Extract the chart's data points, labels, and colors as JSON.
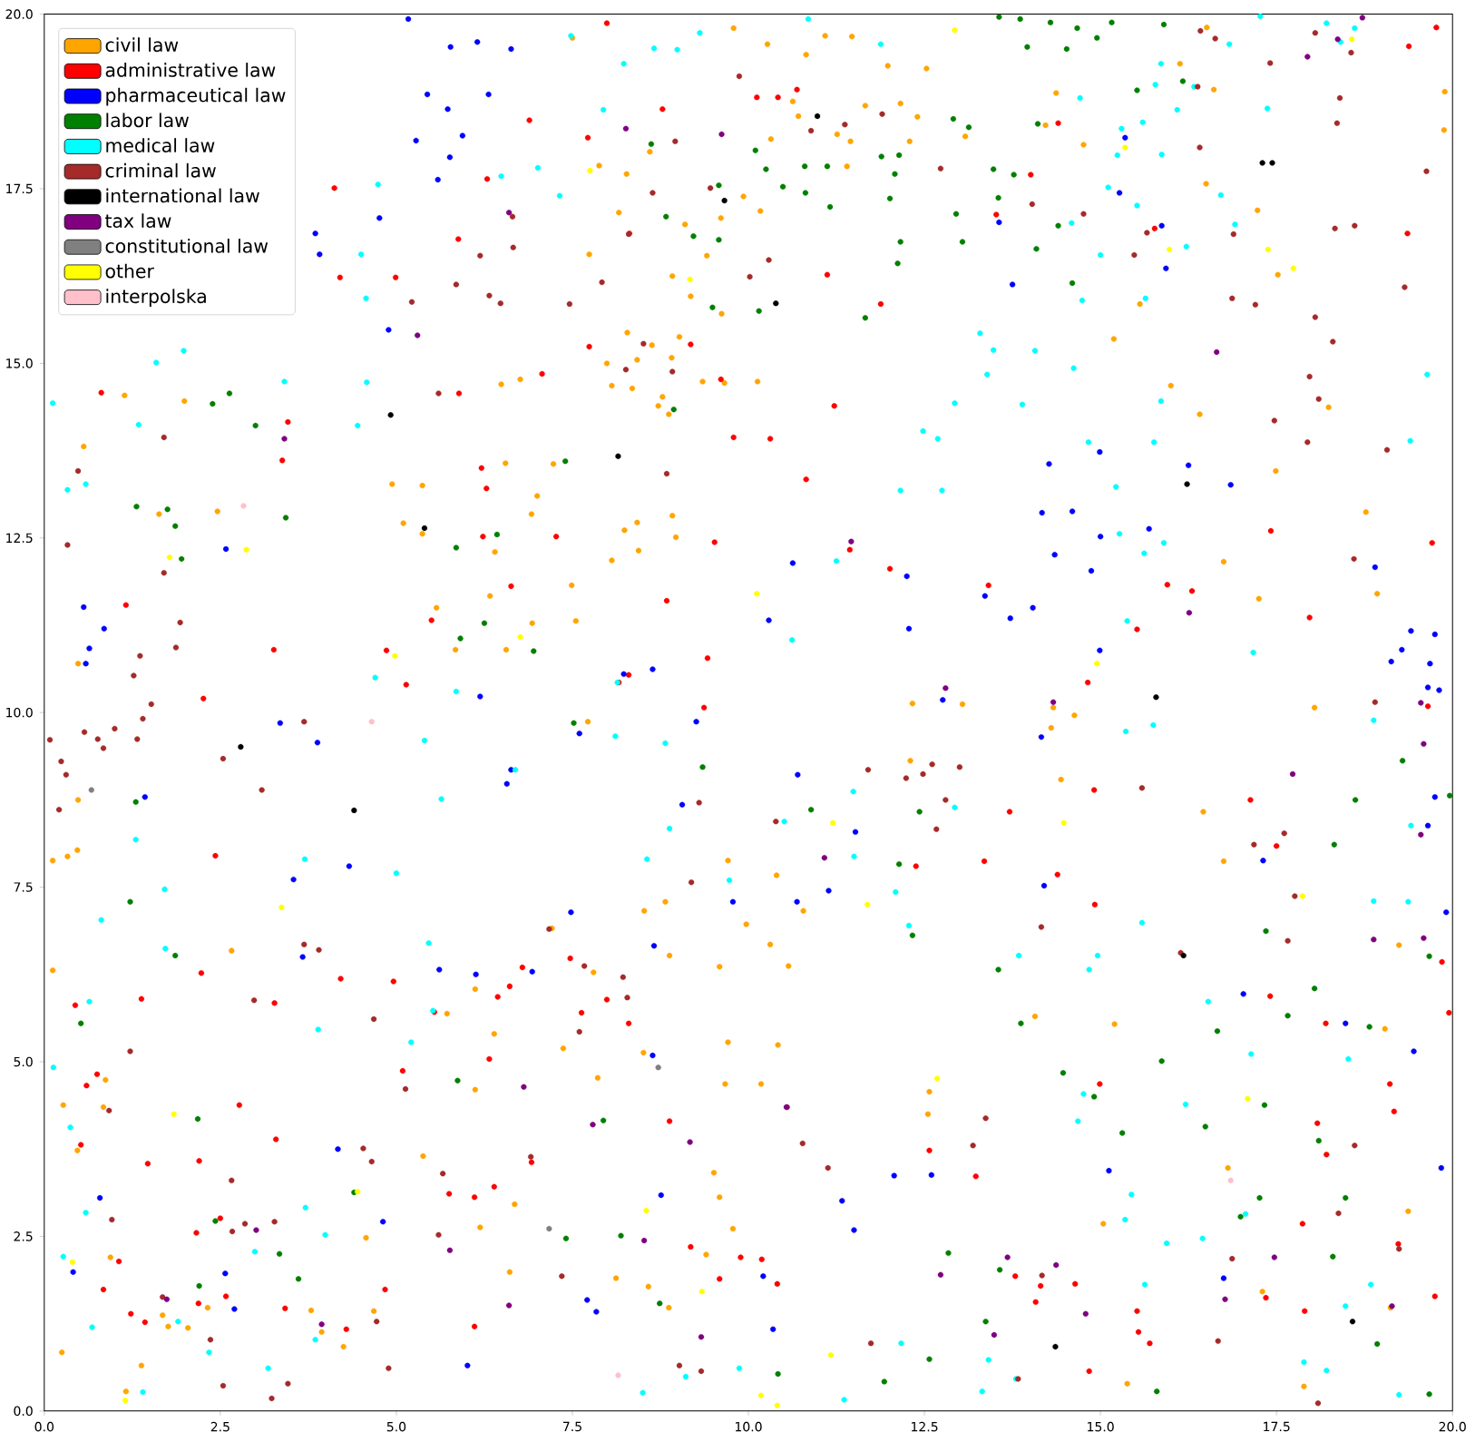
{
  "chart_data": {
    "type": "scatter",
    "marker": "circle",
    "legend": "top left",
    "xlim": [
      0,
      20
    ],
    "ylim": [
      0,
      20
    ],
    "xticks": [
      {
        "value": 0,
        "label": "0.0"
      },
      {
        "value": 2.5,
        "label": "2.5"
      },
      {
        "value": 5,
        "label": "5.0"
      },
      {
        "value": 7.5,
        "label": "7.5"
      },
      {
        "value": 10,
        "label": "10.0"
      },
      {
        "value": 12.5,
        "label": "12.5"
      },
      {
        "value": 15,
        "label": "15.0"
      },
      {
        "value": 17.5,
        "label": "17.5"
      },
      {
        "value": 20,
        "label": "20.0"
      }
    ],
    "yticks": [
      {
        "value": 0,
        "label": "0.0"
      },
      {
        "value": 2.5,
        "label": "2.5"
      },
      {
        "value": 5,
        "label": "5.0"
      },
      {
        "value": 7.5,
        "label": "7.5"
      },
      {
        "value": 10,
        "label": "10.0"
      },
      {
        "value": 12.5,
        "label": "12.5"
      },
      {
        "value": 15,
        "label": "15.0"
      },
      {
        "value": 17.5,
        "label": "17.5"
      },
      {
        "value": 20,
        "label": "20.0"
      }
    ],
    "series": [
      {
        "name": "civil law",
        "color": "#ffa500",
        "x": [
          7.5,
          9.79,
          10.27,
          10.82,
          11.09,
          11.47,
          11.98,
          12.53,
          13.08,
          14.37,
          14.76,
          14.22,
          10.63,
          10.71,
          10.32,
          11.26,
          11.66,
          12.16,
          12.29,
          11.45,
          11.4,
          12.4,
          10.17,
          9.93,
          9.61,
          9.1,
          8.6,
          8.27,
          8.16,
          7.74,
          9.18,
          8.92,
          9.41,
          7.88,
          7.99,
          8.06,
          8.78,
          8.72,
          8.87,
          8.35,
          8.28,
          8.42,
          8.63,
          8.91,
          9.02,
          9.35,
          9.66,
          10.13,
          9.62,
          6.76,
          6.49,
          6.55,
          7.23,
          7.0,
          6.92,
          6.4,
          5.37,
          5.37,
          4.94,
          5.1,
          5.57,
          6.33,
          6.56,
          5.84,
          6.93,
          7.55,
          7.49,
          8.06,
          8.24,
          8.42,
          8.92,
          8.97,
          8.44,
          7.72,
          7.8,
          8.88,
          8.52,
          8.82,
          7.21,
          6.12,
          5.72,
          6.39,
          6.12,
          7.37,
          7.86,
          8.51,
          9.71,
          10.18,
          10.42,
          10.57,
          10.31,
          9.59,
          9.97,
          9.71,
          10.4,
          10.78,
          9.67,
          9.51,
          9.4,
          9.78,
          9.59,
          8.12,
          8.87,
          8.58,
          6.61,
          6.68,
          6.19,
          5.38,
          4.57,
          4.68,
          3.79,
          4.25,
          3.94,
          2.32,
          2.04,
          1.68,
          1.76,
          1.16,
          1.38,
          0.25,
          0.94,
          0.84,
          0.87,
          0.27,
          0.47,
          0.12,
          0.47,
          0.48,
          0.12,
          0.33,
          0.48,
          1.63,
          1.99,
          0.56,
          1.14,
          2.46,
          2.66,
          16.13,
          16.51,
          16.61,
          16.5,
          17.23,
          17.52,
          19.88,
          19.89,
          16.41,
          17.49,
          17.25,
          16.75,
          18.93,
          18.77,
          18.24,
          18.04,
          16.46,
          19.37,
          19.12,
          19.04,
          19.24,
          16.75,
          15.2,
          14.07,
          14.33,
          14.3,
          13.04,
          12.33,
          12.3,
          15.56,
          15.19,
          16.0,
          14.44,
          14.63,
          15.04,
          15.38,
          12.57,
          12.55,
          17.89,
          17.3,
          16.81
        ],
        "values": [
          19.66,
          19.8,
          19.57,
          19.42,
          19.69,
          19.68,
          19.26,
          19.22,
          18.25,
          18.87,
          18.13,
          18.41,
          18.75,
          18.54,
          18.21,
          18.28,
          18.69,
          18.72,
          18.18,
          18.18,
          17.82,
          18.53,
          17.18,
          17.39,
          17.08,
          16.99,
          18.03,
          17.71,
          17.16,
          16.56,
          15.96,
          16.25,
          16.54,
          17.83,
          15.0,
          14.68,
          14.52,
          14.39,
          14.27,
          14.64,
          15.44,
          15.05,
          15.26,
          15.08,
          15.38,
          14.74,
          14.72,
          14.74,
          15.71,
          14.77,
          14.7,
          13.57,
          13.56,
          13.1,
          12.84,
          12.3,
          13.25,
          12.56,
          13.27,
          12.71,
          11.5,
          11.67,
          10.9,
          10.9,
          11.28,
          11.31,
          11.82,
          12.18,
          12.61,
          12.72,
          12.82,
          12.51,
          12.32,
          9.87,
          6.28,
          6.52,
          7.16,
          7.29,
          6.91,
          6.04,
          5.69,
          5.4,
          4.6,
          5.19,
          4.77,
          5.13,
          5.28,
          4.68,
          5.24,
          6.37,
          6.68,
          6.36,
          6.97,
          7.88,
          7.67,
          7.16,
          4.68,
          3.41,
          2.24,
          2.61,
          3.06,
          1.9,
          1.48,
          1.78,
          1.99,
          2.96,
          2.63,
          3.65,
          2.48,
          1.43,
          1.44,
          0.92,
          1.13,
          1.48,
          1.19,
          1.37,
          1.21,
          0.28,
          0.65,
          0.84,
          2.2,
          4.35,
          4.74,
          4.38,
          3.73,
          6.31,
          8.03,
          8.75,
          7.88,
          7.94,
          10.7,
          12.84,
          14.46,
          13.81,
          14.54,
          12.88,
          6.59,
          19.29,
          19.81,
          18.92,
          17.57,
          17.19,
          16.27,
          18.34,
          18.89,
          14.27,
          13.46,
          11.63,
          12.16,
          11.7,
          12.87,
          14.37,
          10.07,
          8.58,
          2.86,
          1.48,
          5.47,
          6.67,
          7.87,
          5.54,
          5.65,
          10.07,
          9.78,
          10.12,
          10.13,
          9.31,
          15.85,
          15.35,
          14.68,
          9.04,
          9.96,
          2.68,
          0.39,
          4.57,
          4.25,
          0.35,
          1.71,
          3.48
        ]
      },
      {
        "name": "administrative law",
        "color": "#ff0000",
        "x": [
          7.99,
          10.42,
          10.12,
          10.69,
          6.89,
          8.78,
          14.4,
          14.01,
          13.52,
          19.77,
          19.38,
          19.36,
          4.12,
          4.2,
          4.99,
          6.29,
          5.88,
          7.72,
          8.31,
          11.12,
          11.88,
          11.22,
          10.31,
          10.82,
          9.79,
          9.61,
          9.18,
          7.74,
          7.07,
          5.89,
          6.21,
          6.28,
          6.23,
          5.5,
          4.86,
          5.14,
          6.63,
          7.27,
          8.84,
          9.42,
          8.3,
          8.16,
          9.37,
          9.52,
          11.44,
          12.01,
          13.41,
          14.82,
          15.95,
          15.52,
          16.3,
          15.77,
          17.42,
          17.97,
          19.71,
          19.65,
          19.85,
          19.95,
          19.75,
          19.23,
          19.11,
          19.17,
          18.08,
          18.21,
          18.2,
          17.35,
          17.9,
          17.87,
          17.41,
          17.5,
          17.13,
          14.39,
          14.91,
          14.92,
          14.99,
          14.64,
          13.79,
          14.15,
          15.52,
          15.54,
          15.7,
          14.84,
          14.08,
          13.23,
          12.57,
          12.38,
          13.35,
          13.71,
          10.19,
          9.89,
          10.41,
          9.59,
          9.18,
          8.88,
          8.3,
          7.99,
          7.63,
          7.47,
          6.61,
          6.79,
          6.44,
          5.54,
          5.09,
          6.32,
          6.92,
          6.11,
          5.75,
          6.39,
          6.11,
          4.84,
          4.29,
          3.42,
          3.29,
          2.77,
          2.2,
          2.19,
          2.16,
          2.5,
          2.58,
          1.23,
          1.43,
          1.47,
          1.06,
          0.84,
          0.52,
          0.75,
          0.6,
          0.44,
          1.38,
          2.23,
          2.43,
          2.26,
          3.27,
          3.26,
          3.38,
          3.46,
          0.81,
          1.16,
          4.21,
          4.96
        ],
        "values": [
          19.87,
          18.81,
          18.81,
          18.92,
          18.48,
          18.64,
          18.44,
          17.7,
          17.13,
          19.81,
          19.54,
          16.86,
          17.51,
          16.23,
          16.23,
          17.64,
          16.78,
          18.23,
          16.86,
          16.27,
          15.85,
          14.39,
          13.92,
          13.34,
          13.94,
          14.77,
          15.27,
          15.24,
          14.85,
          14.57,
          13.5,
          13.21,
          12.52,
          11.32,
          10.89,
          10.4,
          11.81,
          12.52,
          11.6,
          10.78,
          10.54,
          10.43,
          10.07,
          12.44,
          12.33,
          12.06,
          11.82,
          10.43,
          11.83,
          11.19,
          11.74,
          16.93,
          12.6,
          11.36,
          12.43,
          10.09,
          6.43,
          5.7,
          1.64,
          2.39,
          4.68,
          4.29,
          4.12,
          3.67,
          5.55,
          1.62,
          1.43,
          2.68,
          5.94,
          8.09,
          8.75,
          7.68,
          8.89,
          7.25,
          4.68,
          1.82,
          1.93,
          1.79,
          1.43,
          1.13,
          0.97,
          0.57,
          1.56,
          3.36,
          3.73,
          7.8,
          7.87,
          8.58,
          2.17,
          2.2,
          1.82,
          1.89,
          2.35,
          4.15,
          5.55,
          5.89,
          5.7,
          6.48,
          6.08,
          6.35,
          5.93,
          5.71,
          4.87,
          5.04,
          3.56,
          3.06,
          3.11,
          3.21,
          1.21,
          1.74,
          1.17,
          1.47,
          3.89,
          4.38,
          3.58,
          1.54,
          2.55,
          2.76,
          1.64,
          1.39,
          1.27,
          3.54,
          2.14,
          1.74,
          3.81,
          4.82,
          4.66,
          5.81,
          5.9,
          6.27,
          7.95,
          10.2,
          5.84,
          10.9,
          13.61,
          14.16,
          14.58,
          11.54,
          6.19,
          6.15
        ]
      },
      {
        "name": "pharmaceutical law",
        "color": "#0000ff",
        "x": [
          5.17,
          5.77,
          6.15,
          6.63,
          5.44,
          5.73,
          5.28,
          5.94,
          6.31,
          5.76,
          5.59,
          4.76,
          3.85,
          3.91,
          4.89,
          0.56,
          0.85,
          0.64,
          0.59,
          2.58,
          1.43,
          3.35,
          3.88,
          4.33,
          3.54,
          3.67,
          0.79,
          0.41,
          2.57,
          2.7,
          4.17,
          4.81,
          6.01,
          7.84,
          6.93,
          6.13,
          5.61,
          7.48,
          8.64,
          8.66,
          8.76,
          7.71,
          10.21,
          10.35,
          11.33,
          15.12,
          12.6,
          12.07,
          11.5,
          11.14,
          10.69,
          10.7,
          9.78,
          11.52,
          9.06,
          9.26,
          7.6,
          6.57,
          6.63,
          6.19,
          8.23,
          8.64,
          10.63,
          10.29,
          12.28,
          12.25,
          12.76,
          13.36,
          13.72,
          14.04,
          14.35,
          15.0,
          14.87,
          14.6,
          14.17,
          14.99,
          15.69,
          16.25,
          16.85,
          14.27,
          14.99,
          14.16,
          14.2,
          15.35,
          15.27,
          15.87,
          15.93,
          13.75,
          13.56,
          17.31,
          18.48,
          17.03,
          16.75,
          19.45,
          19.84,
          19.91,
          19.65,
          19.75,
          19.65,
          19.81,
          19.41,
          19.75,
          19.28,
          19.13,
          18.9,
          19.68
        ],
        "values": [
          19.93,
          19.53,
          19.6,
          19.5,
          18.85,
          18.64,
          18.19,
          18.26,
          18.85,
          17.95,
          17.63,
          17.08,
          16.86,
          16.56,
          15.48,
          11.51,
          11.2,
          10.92,
          10.7,
          12.34,
          8.79,
          9.85,
          9.57,
          7.8,
          7.61,
          6.5,
          3.05,
          1.99,
          1.97,
          1.46,
          3.75,
          2.71,
          0.65,
          1.42,
          6.29,
          6.25,
          6.32,
          7.14,
          5.09,
          6.66,
          3.09,
          1.59,
          1.93,
          1.17,
          3.01,
          3.44,
          3.38,
          3.37,
          2.59,
          7.45,
          7.29,
          9.11,
          7.29,
          8.29,
          8.68,
          9.87,
          9.7,
          8.98,
          9.18,
          10.23,
          10.55,
          10.62,
          12.14,
          11.32,
          11.2,
          11.95,
          10.18,
          11.67,
          11.35,
          11.5,
          12.26,
          12.52,
          12.03,
          12.88,
          12.86,
          10.89,
          12.63,
          13.54,
          13.26,
          13.56,
          13.73,
          9.65,
          7.52,
          18.23,
          17.44,
          16.97,
          16.36,
          16.13,
          17.02,
          7.88,
          5.55,
          5.97,
          1.9,
          5.15,
          3.48,
          7.14,
          8.38,
          8.79,
          10.36,
          10.32,
          11.17,
          11.12,
          10.9,
          10.73,
          12.08,
          10.7
        ]
      },
      {
        "name": "labor law",
        "color": "#008000",
        "x": [
          13.56,
          13.86,
          14.29,
          13.96,
          14.52,
          14.95,
          14.67,
          15.16,
          15.52,
          15.9,
          16.17,
          14.11,
          13.13,
          12.91,
          13.48,
          13.77,
          13.55,
          14.09,
          14.4,
          14.6,
          13.04,
          12.95,
          12.14,
          12.08,
          12.01,
          11.89,
          12.16,
          12.12,
          11.66,
          11.12,
          11.16,
          10.8,
          10.81,
          10.25,
          10.49,
          10.1,
          9.58,
          9.58,
          9.22,
          8.83,
          8.62,
          9.49,
          10.15,
          8.94,
          7.4,
          6.43,
          5.85,
          5.91,
          6.25,
          6.95,
          7.52,
          9.35,
          10.89,
          12.43,
          12.14,
          12.33,
          13.55,
          13.87,
          14.47,
          14.91,
          15.31,
          15.87,
          16.66,
          16.49,
          16.99,
          17.26,
          17.33,
          17.66,
          17.35,
          18.04,
          18.82,
          18.32,
          18.62,
          19.29,
          19.96,
          19.67,
          19.67,
          18.93,
          18.3,
          18.48,
          18.1,
          0.52,
          1.3,
          1.22,
          1.86,
          2.18,
          2.43,
          2.2,
          3.34,
          3.61,
          4.4,
          3.43,
          3.0,
          2.63,
          2.39,
          1.86,
          1.75,
          1.95,
          1.31,
          7.94,
          5.87,
          7.41,
          8.19,
          8.74,
          10.42,
          11.93,
          12.57,
          12.84,
          13.37,
          13.57,
          15.8
        ],
        "values": [
          19.96,
          19.93,
          19.88,
          19.53,
          19.5,
          19.66,
          19.8,
          19.88,
          18.91,
          19.85,
          19.04,
          18.43,
          18.38,
          18.5,
          17.78,
          17.7,
          17.37,
          16.64,
          16.97,
          16.15,
          16.74,
          17.14,
          17.98,
          17.71,
          17.36,
          17.96,
          16.74,
          16.43,
          15.65,
          17.82,
          17.24,
          17.82,
          17.44,
          17.78,
          17.53,
          18.05,
          17.55,
          16.77,
          16.82,
          17.1,
          18.14,
          15.8,
          15.75,
          14.34,
          13.6,
          12.55,
          12.36,
          11.06,
          11.28,
          10.88,
          9.85,
          9.22,
          8.61,
          8.58,
          7.83,
          6.81,
          6.32,
          5.55,
          4.84,
          4.5,
          3.98,
          5.01,
          5.44,
          4.07,
          2.78,
          3.05,
          4.38,
          5.66,
          6.87,
          6.05,
          5.5,
          8.11,
          8.75,
          9.31,
          8.81,
          6.51,
          0.24,
          0.96,
          2.21,
          3.05,
          3.87,
          5.55,
          8.72,
          7.29,
          6.52,
          4.18,
          2.72,
          1.79,
          2.25,
          1.89,
          3.13,
          12.79,
          14.11,
          14.57,
          14.42,
          12.67,
          12.91,
          12.2,
          12.95,
          4.16,
          4.73,
          2.47,
          2.51,
          1.54,
          0.53,
          0.42,
          0.74,
          2.26,
          1.28,
          2.02,
          0.28
        ]
      },
      {
        "name": "medical law",
        "color": "#00ffff",
        "x": [
          18.21,
          18.61,
          18.41,
          15.86,
          15.78,
          16.09,
          16.33,
          16.83,
          17.27,
          17.37,
          15.3,
          15.24,
          15.87,
          15.6,
          14.71,
          15.11,
          14.59,
          15.0,
          15.52,
          16.22,
          15.64,
          16.71,
          16.91,
          14.74,
          14.62,
          14.07,
          13.29,
          13.48,
          13.39,
          12.93,
          12.48,
          12.75,
          12.16,
          12.69,
          13.89,
          14.83,
          15.86,
          15.76,
          15.22,
          15.9,
          15.27,
          15.38,
          17.17,
          19.4,
          19.64,
          0.12,
          0.33,
          0.59,
          1.34,
          1.59,
          1.98,
          3.41,
          4.57,
          4.58,
          4.45,
          8.5,
          9.11,
          9.87,
          11.36,
          12.17,
          13.41,
          13.32,
          13.8,
          15.63,
          15.35,
          15.94,
          16.45,
          17.06,
          17.89,
          18.21,
          19.24,
          18.84,
          18.48,
          15.44,
          14.68,
          14.76,
          14.84,
          14.96,
          13.84,
          12.28,
          12.09,
          11.5,
          11.49,
          10.51,
          9.73,
          8.88,
          8.56,
          8.82,
          8.14,
          8.11,
          6.69,
          5.64,
          5.4,
          4.7,
          5.85,
          5.0,
          5.46,
          5.52,
          5.21,
          3.89,
          3.7,
          1.72,
          1.71,
          1.3,
          0.81,
          0.64,
          0.13,
          0.37,
          0.59,
          0.27,
          0.68,
          1.4,
          1.9,
          2.34,
          3.18,
          3.85,
          3.71,
          3.99,
          2.99,
          18.88,
          19.41,
          19.37,
          18.88,
          18.52,
          17.14,
          16.21,
          16.53,
          15.59,
          15.36,
          15.75,
          15.62,
          11.25,
          10.62,
          12.93,
          8.66,
          8.99,
          9.31,
          10.85,
          11.88,
          8.23,
          7.94,
          7.48,
          7.01,
          6.49,
          7.32,
          4.74,
          4.5
        ],
        "values": [
          19.87,
          19.8,
          19.6,
          19.29,
          18.99,
          18.63,
          18.96,
          19.57,
          19.97,
          18.65,
          18.36,
          17.98,
          17.99,
          18.45,
          18.8,
          17.52,
          17.01,
          16.55,
          17.26,
          16.67,
          15.93,
          17.41,
          16.99,
          15.9,
          14.93,
          15.18,
          15.43,
          15.19,
          14.84,
          14.43,
          14.03,
          13.18,
          13.18,
          13.92,
          14.41,
          13.87,
          14.46,
          13.87,
          13.23,
          12.43,
          12.56,
          11.31,
          10.86,
          13.89,
          14.84,
          14.43,
          13.19,
          13.27,
          14.12,
          15.01,
          15.18,
          14.74,
          15.93,
          14.73,
          14.11,
          0.26,
          0.49,
          0.61,
          0.16,
          0.97,
          0.73,
          0.28,
          0.46,
          1.81,
          2.74,
          2.4,
          2.47,
          2.82,
          0.7,
          0.58,
          0.23,
          1.81,
          1.5,
          3.1,
          4.15,
          4.54,
          6.32,
          6.52,
          6.52,
          6.95,
          7.43,
          7.94,
          8.87,
          8.44,
          7.6,
          8.34,
          7.9,
          9.56,
          10.43,
          9.66,
          9.18,
          8.76,
          9.6,
          10.5,
          10.3,
          7.7,
          6.7,
          5.73,
          5.28,
          5.46,
          7.9,
          6.62,
          7.47,
          8.18,
          7.03,
          5.86,
          4.92,
          4.06,
          2.84,
          2.21,
          1.2,
          0.27,
          1.28,
          0.84,
          0.61,
          1.02,
          2.91,
          2.52,
          2.28,
          9.89,
          8.38,
          7.29,
          7.3,
          5.04,
          5.11,
          4.39,
          5.86,
          6.99,
          9.73,
          9.82,
          12.28,
          12.17,
          11.04,
          8.64,
          19.51,
          19.49,
          19.73,
          19.93,
          19.57,
          19.29,
          18.63,
          19.69,
          17.8,
          17.68,
          17.4,
          17.56,
          16.56
        ]
      },
      {
        "name": "criminal law",
        "color": "#a52a2a",
        "x": [
          0.08,
          0.24,
          0.31,
          0.21,
          0.57,
          0.76,
          0.84,
          1.0,
          1.32,
          1.4,
          1.52,
          1.27,
          1.36,
          1.87,
          1.93,
          1.7,
          1.7,
          0.33,
          0.48,
          1.22,
          0.92,
          0.96,
          1.68,
          2.67,
          2.85,
          2.66,
          3.27,
          3.46,
          3.23,
          2.54,
          2.36,
          3.09,
          2.98,
          2.54,
          3.69,
          3.9,
          3.69,
          4.68,
          4.53,
          4.65,
          5.13,
          4.72,
          4.89,
          5.22,
          5.6,
          5.85,
          6.19,
          6.32,
          6.65,
          6.48,
          6.66,
          7.46,
          7.92,
          8.3,
          8.64,
          8.96,
          8.51,
          8.26,
          8.84,
          8.92,
          9.87,
          9.46,
          10.29,
          10.02,
          10.89,
          11.37,
          11.9,
          12.73,
          14.03,
          14.76,
          15.66,
          15.48,
          16.42,
          16.63,
          16.38,
          16.41,
          16.89,
          16.87,
          17.2,
          17.41,
          18.05,
          18.4,
          18.36,
          18.56,
          18.33,
          18.61,
          18.3,
          17.97,
          17.47,
          18.05,
          18.1,
          17.94,
          19.07,
          19.32,
          19.63,
          18.9,
          18.6,
          17.61,
          17.18,
          17.76,
          17.66,
          16.87,
          16.67,
          18.61,
          18.38,
          18.09,
          19.24,
          16.14,
          15.59,
          14.16,
          13.37,
          13.19,
          14.17,
          13.83,
          11.74,
          11.13,
          10.77,
          10.55,
          12.67,
          12.61,
          12.8,
          12.24,
          12.48,
          13.0,
          11.7,
          10.39,
          9.3,
          9.19,
          8.22,
          7.17,
          7.67,
          8.28,
          7.6,
          6.91,
          5.66,
          5.6,
          7.35,
          9.02,
          9.33
        ],
        "values": [
          9.61,
          9.3,
          9.11,
          8.61,
          9.72,
          9.62,
          9.49,
          9.77,
          9.62,
          9.91,
          10.12,
          10.53,
          10.81,
          10.93,
          11.29,
          12.0,
          13.94,
          12.4,
          13.46,
          5.15,
          4.3,
          2.74,
          1.63,
          2.57,
          2.68,
          3.3,
          2.71,
          0.39,
          0.18,
          0.36,
          1.02,
          8.89,
          5.88,
          9.34,
          9.87,
          6.6,
          6.68,
          5.61,
          3.76,
          3.57,
          4.61,
          1.28,
          0.61,
          15.88,
          14.57,
          16.13,
          16.54,
          15.97,
          17.1,
          15.86,
          16.66,
          15.85,
          16.16,
          16.85,
          17.44,
          18.18,
          15.28,
          14.91,
          13.42,
          14.88,
          19.11,
          17.51,
          16.48,
          16.24,
          18.33,
          18.42,
          18.57,
          17.79,
          17.28,
          17.14,
          16.87,
          16.55,
          19.76,
          19.65,
          18.96,
          18.09,
          16.85,
          15.93,
          15.84,
          19.3,
          19.73,
          18.8,
          18.44,
          19.45,
          16.93,
          16.97,
          15.31,
          14.81,
          14.18,
          15.66,
          14.49,
          13.87,
          13.76,
          16.09,
          17.75,
          10.15,
          12.2,
          8.27,
          8.11,
          7.37,
          6.73,
          2.18,
          1.0,
          3.8,
          2.83,
          0.11,
          2.32,
          6.56,
          8.92,
          6.93,
          4.19,
          3.8,
          1.94,
          0.46,
          0.97,
          3.48,
          3.83,
          4.35,
          8.33,
          9.26,
          8.75,
          9.06,
          9.12,
          9.22,
          9.18,
          8.44,
          8.71,
          7.57,
          6.21,
          6.9,
          6.37,
          5.92,
          5.43,
          3.64,
          3.4,
          2.52,
          1.93,
          0.65,
          0.57
        ]
      },
      {
        "name": "international law",
        "color": "#000000",
        "x": [
          9.66,
          10.98,
          10.39,
          17.3,
          17.44,
          4.92,
          8.15,
          16.23,
          5.4,
          15.79,
          2.79,
          4.4,
          16.18,
          14.36,
          18.58
        ],
        "values": [
          17.33,
          18.54,
          15.86,
          17.87,
          17.87,
          14.26,
          13.67,
          13.27,
          12.64,
          10.22,
          9.51,
          8.6,
          6.52,
          0.92,
          1.28
        ]
      },
      {
        "name": "tax law",
        "color": "#800080",
        "x": [
          8.26,
          18.37,
          9.62,
          6.6,
          5.3,
          3.41,
          16.65,
          16.26,
          11.46,
          12.8,
          14.33,
          17.73,
          19.55,
          19.59,
          19.55,
          19.59,
          18.88,
          11.08,
          6.81,
          7.79,
          9.17,
          10.54,
          5.76,
          17.47,
          13.68,
          14.37,
          12.73,
          16.77,
          13.49,
          14.79,
          9.33,
          1.74,
          3.01,
          3.94,
          6.6,
          8.52,
          19.14,
          17.94,
          18.72
        ],
        "values": [
          18.36,
          19.64,
          18.28,
          17.16,
          15.4,
          13.92,
          15.16,
          11.43,
          12.45,
          10.35,
          10.15,
          9.12,
          10.14,
          9.55,
          8.25,
          6.77,
          6.75,
          7.92,
          4.64,
          4.1,
          3.85,
          4.35,
          2.3,
          2.2,
          2.2,
          2.09,
          1.95,
          1.6,
          1.09,
          1.39,
          1.06,
          1.6,
          2.59,
          1.24,
          1.51,
          2.44,
          1.5,
          19.39,
          19.95
        ]
      },
      {
        "name": "constitutional law",
        "color": "#808080",
        "x": [
          0.67,
          7.17,
          8.72
        ],
        "values": [
          8.89,
          2.61,
          4.92
        ]
      },
      {
        "name": "other",
        "color": "#ffff00",
        "x": [
          12.93,
          15.35,
          17.38,
          17.74,
          7.75,
          9.17,
          1.78,
          2.87,
          10.12,
          6.76,
          4.98,
          14.95,
          14.48,
          11.2,
          11.69,
          17.87,
          3.37,
          17.09,
          12.68,
          1.84,
          4.45,
          0.4,
          8.55,
          9.34,
          1.15,
          10.18,
          10.41,
          11.17,
          18.57,
          15.98
        ],
        "values": [
          19.77,
          18.09,
          16.63,
          16.36,
          17.76,
          16.2,
          12.22,
          12.33,
          11.7,
          11.08,
          10.81,
          10.7,
          8.42,
          8.42,
          7.25,
          7.37,
          7.21,
          4.47,
          4.76,
          4.25,
          3.14,
          2.13,
          2.87,
          1.71,
          0.15,
          0.22,
          0.08,
          0.8,
          19.64,
          16.63
        ]
      },
      {
        "name": "interpolska",
        "color": "#ffc0cb",
        "x": [
          2.83,
          4.65,
          8.15,
          16.85
        ],
        "values": [
          12.96,
          9.87,
          0.51,
          3.3
        ]
      }
    ]
  }
}
